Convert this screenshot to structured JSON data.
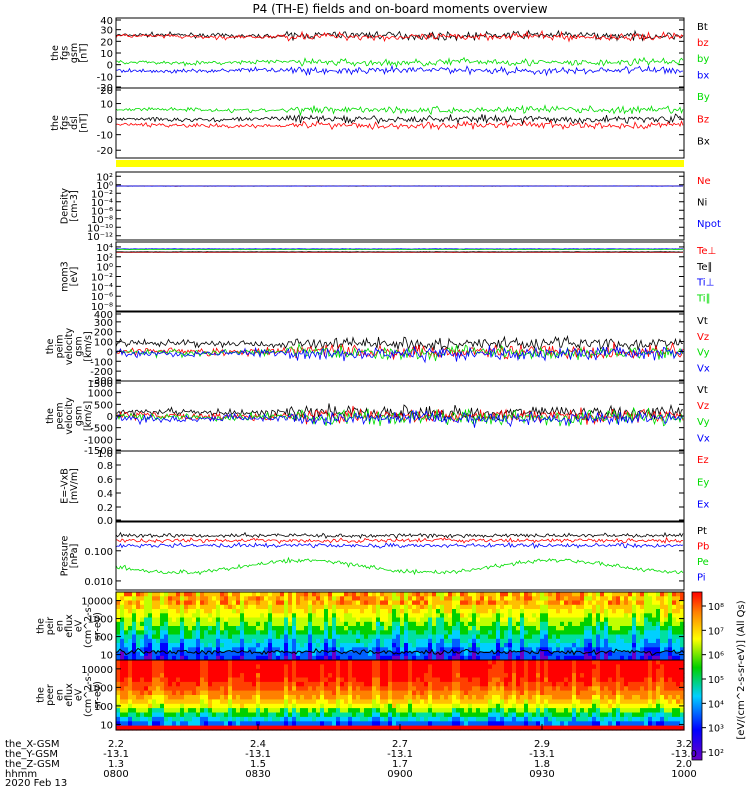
{
  "chart_data": {
    "type": "line",
    "title": "P4 (TH-E) fields and on-board moments overview",
    "date_label": "2020 Feb 13",
    "x_axis": {
      "time_ticks": [
        "0800",
        "0830",
        "0900",
        "0930",
        "1000"
      ],
      "row_labels": [
        "the_X-GSM",
        "the_Y-GSM",
        "the_Z-GSM",
        "hhmm"
      ],
      "rows": [
        [
          "2.2",
          "2.4",
          "2.7",
          "2.9",
          "3.2"
        ],
        [
          "-13.1",
          "-13.1",
          "-13.1",
          "-13.1",
          "-13.0"
        ],
        [
          "1.3",
          "1.5",
          "1.7",
          "1.8",
          "2.0"
        ]
      ]
    },
    "panels": [
      {
        "id": "fgs-gsm",
        "ylabel": [
          "the",
          "fgs",
          "gsm",
          "[nT]"
        ],
        "scale": "linear",
        "ylim": [
          -20,
          40
        ],
        "ticks": [
          "40",
          "30",
          "20",
          "10",
          "0",
          "-10",
          "-20"
        ],
        "series": [
          {
            "name": "Bt",
            "color": "#000000",
            "level": 25
          },
          {
            "name": "bz",
            "color": "#ff0000",
            "level": 24
          },
          {
            "name": "by",
            "color": "#00dd00",
            "level": 2
          },
          {
            "name": "bx",
            "color": "#0000ff",
            "level": -5
          }
        ]
      },
      {
        "id": "fgs-dsl",
        "ylabel": [
          "the",
          "fgs",
          "dsl",
          "[nT]"
        ],
        "scale": "linear",
        "ylim": [
          -25,
          20
        ],
        "ticks": [
          "20",
          "10",
          "0",
          "-10",
          "-20"
        ],
        "series": [
          {
            "name": "By",
            "color": "#00dd00",
            "level": 6
          },
          {
            "name": "Bz",
            "color": "#ff0000",
            "level": -4
          },
          {
            "name": "Bx",
            "color": "#000000",
            "level": 0
          }
        ]
      },
      {
        "id": "density",
        "ylabel": [
          "Density",
          "[cm-3]"
        ],
        "scale": "log",
        "ylim": [
          "1e-13",
          "1e3"
        ],
        "ticks": [
          "10^2",
          "10^0",
          "10^-2",
          "10^-4",
          "10^-6",
          "10^-8",
          "10^-10",
          "10^-12"
        ],
        "series": [
          {
            "name": "Ne",
            "color": "#ff0000",
            "level": 0.5
          },
          {
            "name": "Ni",
            "color": "#000000",
            "level": 0.5
          },
          {
            "name": "Npot",
            "color": "#0000ff",
            "level": 0.5
          }
        ]
      },
      {
        "id": "temperature",
        "ylabel": [
          "mom3",
          "[eV]"
        ],
        "scale": "log",
        "ylim": [
          "1e-9",
          "1e5"
        ],
        "ticks": [
          "10^4",
          "10^2",
          "10^0",
          "10^-2",
          "10^-4",
          "10^-6",
          "10^-8"
        ],
        "series": [
          {
            "name": "Te⊥",
            "color": "#ff0000",
            "level": 800
          },
          {
            "name": "Te∥",
            "color": "#000000",
            "level": 1000
          },
          {
            "name": "Ti⊥",
            "color": "#0000ff",
            "level": 4000
          },
          {
            "name": "Ti∥",
            "color": "#00dd00",
            "level": 3000
          }
        ]
      },
      {
        "id": "ion-velocity",
        "ylabel": [
          "the",
          "peim",
          "velocity",
          "gsm",
          "[km/s]"
        ],
        "scale": "linear",
        "ylim": [
          -300,
          400
        ],
        "ticks": [
          "400",
          "300",
          "200",
          "100",
          "0",
          "-100",
          "-200",
          "-300"
        ],
        "series": [
          {
            "name": "Vt",
            "color": "#000000",
            "level": 80
          },
          {
            "name": "Vz",
            "color": "#ff0000",
            "level": 0
          },
          {
            "name": "Vy",
            "color": "#00dd00",
            "level": -10
          },
          {
            "name": "Vx",
            "color": "#0000ff",
            "level": -20
          }
        ]
      },
      {
        "id": "electron-velocity",
        "ylabel": [
          "the",
          "peem",
          "velocity",
          "gsm",
          "[km/s]"
        ],
        "scale": "linear",
        "ylim": [
          -1500,
          1500
        ],
        "ticks": [
          "1500",
          "1000",
          "500",
          "0",
          "-500",
          "-1000",
          "-1500"
        ],
        "series": [
          {
            "name": "Vt",
            "color": "#000000",
            "level": 150
          },
          {
            "name": "Vz",
            "color": "#ff0000",
            "level": 0
          },
          {
            "name": "Vy",
            "color": "#00dd00",
            "level": -50
          },
          {
            "name": "Vx",
            "color": "#0000ff",
            "level": -100
          }
        ]
      },
      {
        "id": "efield",
        "ylabel": [
          "E=-VxB",
          "[mV/m]"
        ],
        "scale": "linear",
        "ylim": [
          0,
          1.0
        ],
        "ticks": [
          "1.0",
          "0.8",
          "0.6",
          "0.4",
          "0.2",
          "0.0"
        ],
        "series": [
          {
            "name": "Ez",
            "color": "#ff0000",
            "level": null
          },
          {
            "name": "Ey",
            "color": "#00dd00",
            "level": null
          },
          {
            "name": "Ex",
            "color": "#0000ff",
            "level": null
          }
        ]
      },
      {
        "id": "pressure",
        "ylabel": [
          "Pressure",
          "[nPa]"
        ],
        "scale": "log",
        "ylim": [
          "0.005",
          "0.9"
        ],
        "ticks": [
          "0.100",
          "0.010"
        ],
        "series": [
          {
            "name": "Pt",
            "color": "#000000",
            "level": 0.32
          },
          {
            "name": "Pb",
            "color": "#ff0000",
            "level": 0.22
          },
          {
            "name": "Pe",
            "color": "#00dd00",
            "level": 0.03
          },
          {
            "name": "Pi",
            "color": "#0000ff",
            "level": 0.15
          }
        ]
      },
      {
        "id": "ion-spectrogram",
        "ylabel": [
          "the",
          "peir",
          "en",
          "eflux",
          "eV",
          "(cm^2-s-",
          "sr-eV)"
        ],
        "scale": "log",
        "ylim": [
          5,
          30000
        ],
        "ticks": [
          "10000",
          "1000",
          "100",
          "10"
        ],
        "kind": "spectrogram"
      },
      {
        "id": "electron-spectrogram",
        "ylabel": [
          "the",
          "peer",
          "en",
          "eflux",
          "eV",
          "(cm^2-s-",
          "sr-eV)"
        ],
        "scale": "log",
        "ylim": [
          5,
          30000
        ],
        "ticks": [
          "10000",
          "1000",
          "100",
          "10"
        ],
        "kind": "spectrogram"
      }
    ],
    "colorbar": {
      "label": "[eV/(cm^2-s-sr-eV)] (All Qs)",
      "ticks": [
        "10^8",
        "10^7",
        "10^6",
        "10^5",
        "10^4",
        "10^3",
        "10^2"
      ]
    }
  },
  "status_strip": {
    "color": "#ffff00"
  }
}
